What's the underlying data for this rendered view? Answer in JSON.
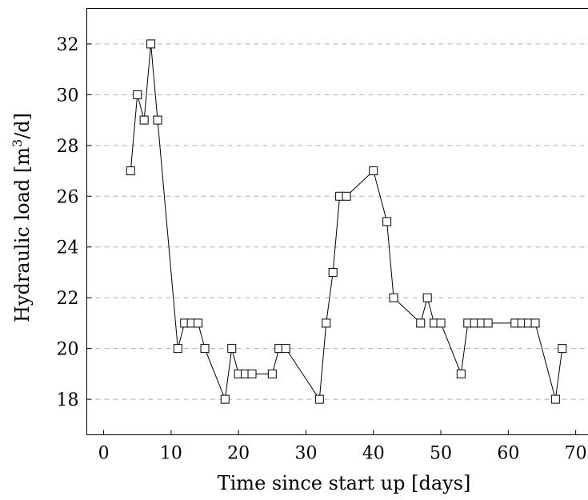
{
  "chart_data": {
    "type": "line",
    "title": "",
    "xlabel": "Time since start up [days]",
    "ylabel_main": "Hydraulic load [m",
    "ylabel_sup": "3",
    "ylabel_tail": "/d]",
    "xlim": [
      -2.5,
      72
    ],
    "ylim": [
      16.6,
      33.4
    ],
    "xticks": [
      0,
      10,
      20,
      30,
      40,
      50,
      60,
      70
    ],
    "yticks": [
      18,
      20,
      22,
      24,
      26,
      28,
      30,
      32
    ],
    "grid": "horizontal-dashed",
    "marker": "square",
    "series": [
      {
        "x": [
          4,
          5,
          6,
          7,
          8,
          11,
          12,
          13,
          14,
          15,
          18,
          19,
          20,
          21,
          22,
          25,
          26,
          27,
          32,
          33,
          34,
          35,
          36,
          40,
          42,
          43,
          47,
          48,
          49,
          50,
          53,
          54,
          55,
          56,
          57,
          61,
          62,
          63,
          64,
          67,
          68
        ],
        "y": [
          27,
          30,
          29,
          32,
          29,
          20,
          21,
          21,
          21,
          20,
          18,
          20,
          19,
          19,
          19,
          19,
          20,
          20,
          18,
          21,
          23,
          26,
          26,
          27,
          25,
          22,
          21,
          22,
          21,
          21,
          19,
          21,
          21,
          21,
          21,
          21,
          21,
          21,
          21,
          18,
          20
        ]
      }
    ]
  }
}
